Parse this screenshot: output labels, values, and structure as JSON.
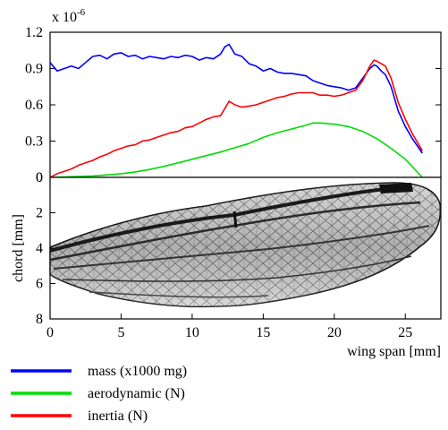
{
  "chart_data": [
    {
      "type": "line",
      "multiplier_label": "x 10",
      "multiplier_exponent": "-6",
      "ylim": [
        0,
        1.2
      ],
      "xlim": [
        0,
        27.5
      ],
      "yticks": [
        {
          "value": 0,
          "label": "0"
        },
        {
          "value": 0.3,
          "label": "0.3"
        },
        {
          "value": 0.6,
          "label": "0.6"
        },
        {
          "value": 0.9,
          "label": "0.9"
        },
        {
          "value": 1.2,
          "label": "1.2"
        }
      ],
      "series": [
        {
          "name": "mass (x1000 mg)",
          "color": "#0000ff",
          "x": [
            0,
            0.5,
            1,
            1.5,
            2,
            2.5,
            3,
            3.5,
            4,
            4.5,
            5,
            5.5,
            6,
            6.5,
            7,
            7.5,
            8,
            8.5,
            9,
            9.5,
            10,
            10.5,
            11,
            11.5,
            12,
            12.3,
            12.6,
            13,
            13.5,
            14,
            14.5,
            15,
            15.5,
            16,
            16.5,
            17,
            17.5,
            18,
            18.5,
            19,
            19.5,
            20,
            20.5,
            21,
            21.5,
            22,
            22.5,
            22.8,
            23,
            23.3,
            23.6,
            24,
            24.5,
            25,
            25.5,
            26.2
          ],
          "y": [
            0.95,
            0.88,
            0.9,
            0.92,
            0.9,
            0.95,
            1.0,
            1.01,
            0.98,
            1.02,
            1.03,
            1.0,
            1.01,
            0.98,
            1.0,
            0.99,
            0.98,
            1.0,
            0.99,
            1.01,
            1.0,
            0.97,
            0.99,
            0.98,
            1.02,
            1.08,
            1.1,
            1.02,
            1.0,
            0.94,
            0.92,
            0.88,
            0.9,
            0.87,
            0.86,
            0.86,
            0.85,
            0.84,
            0.8,
            0.78,
            0.76,
            0.75,
            0.74,
            0.72,
            0.74,
            0.82,
            0.9,
            0.93,
            0.92,
            0.88,
            0.85,
            0.75,
            0.55,
            0.42,
            0.32,
            0.2
          ]
        },
        {
          "name": "aerodynamic (N)",
          "color": "#00dd00",
          "x": [
            0,
            1,
            2,
            3,
            4,
            5,
            6,
            7,
            8,
            9,
            10,
            11,
            12,
            13,
            14,
            15,
            16,
            17,
            18,
            18.5,
            19,
            20,
            21,
            22,
            23,
            24,
            25,
            26.2
          ],
          "y": [
            0,
            0.004,
            0.008,
            0.012,
            0.02,
            0.03,
            0.045,
            0.065,
            0.09,
            0.12,
            0.15,
            0.18,
            0.21,
            0.245,
            0.28,
            0.33,
            0.37,
            0.4,
            0.43,
            0.45,
            0.45,
            0.44,
            0.42,
            0.38,
            0.32,
            0.24,
            0.15,
            0.0
          ]
        },
        {
          "name": "inertia (N)",
          "color": "#ff0000",
          "x": [
            0,
            0.5,
            1,
            1.5,
            2,
            2.5,
            3,
            3.5,
            4,
            4.5,
            5,
            5.5,
            6,
            6.5,
            7,
            7.5,
            8,
            8.5,
            9,
            9.5,
            10,
            10.5,
            11,
            11.5,
            12,
            12.3,
            12.6,
            13,
            13.5,
            14,
            14.5,
            15,
            15.5,
            16,
            16.5,
            17,
            17.5,
            18,
            18.5,
            19,
            19.5,
            20,
            20.5,
            21,
            21.5,
            22,
            22.5,
            22.8,
            23,
            23.3,
            23.6,
            24,
            24.5,
            25,
            25.5,
            26.2
          ],
          "y": [
            0,
            0.03,
            0.05,
            0.07,
            0.1,
            0.12,
            0.14,
            0.17,
            0.19,
            0.22,
            0.24,
            0.26,
            0.27,
            0.3,
            0.31,
            0.33,
            0.35,
            0.37,
            0.38,
            0.41,
            0.42,
            0.45,
            0.48,
            0.5,
            0.51,
            0.57,
            0.63,
            0.6,
            0.58,
            0.59,
            0.6,
            0.62,
            0.64,
            0.66,
            0.67,
            0.69,
            0.7,
            0.7,
            0.7,
            0.68,
            0.68,
            0.67,
            0.68,
            0.7,
            0.72,
            0.8,
            0.92,
            0.97,
            0.96,
            0.94,
            0.92,
            0.82,
            0.62,
            0.48,
            0.36,
            0.22
          ]
        }
      ]
    },
    {
      "type": "image-plot",
      "xlabel": "wing span [mm]",
      "ylabel": "chord [mm]",
      "xlim": [
        0,
        27.5
      ],
      "ylim": [
        0,
        8
      ],
      "xticks": [
        {
          "value": 0,
          "label": "0"
        },
        {
          "value": 5,
          "label": "5"
        },
        {
          "value": 10,
          "label": "10"
        },
        {
          "value": 15,
          "label": "15"
        },
        {
          "value": 20,
          "label": "20"
        },
        {
          "value": 25,
          "label": "25"
        }
      ],
      "yticks": [
        {
          "value": 2,
          "label": "2"
        },
        {
          "value": 4,
          "label": "4"
        },
        {
          "value": 6,
          "label": "6"
        },
        {
          "value": 8,
          "label": "8"
        }
      ],
      "shared_zero_label": "0"
    }
  ],
  "legend": [
    {
      "label": "mass (x1000 mg)",
      "color": "#0000ff"
    },
    {
      "label": "aerodynamic (N)",
      "color": "#00dd00"
    },
    {
      "label": "inertia (N)",
      "color": "#ff0000"
    }
  ]
}
